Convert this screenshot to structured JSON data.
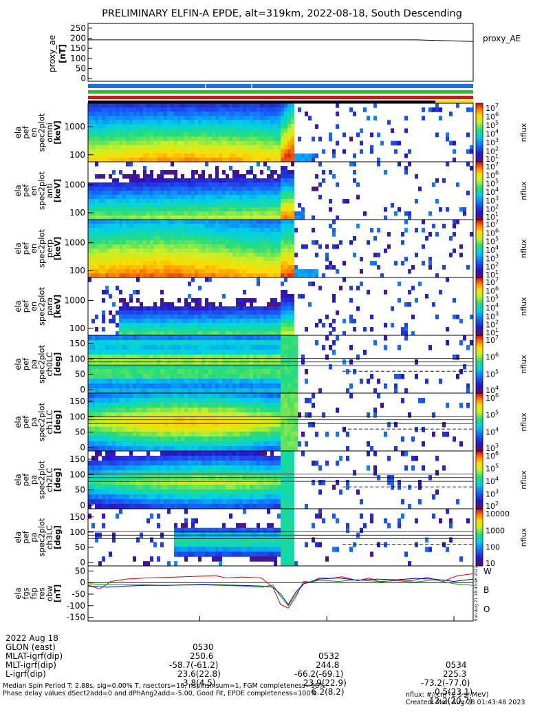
{
  "title": "PRELIMINARY ELFIN-A EPDE, alt=319km, 2022-08-18, South Descending",
  "colors": {
    "strip_blue": "#1e6fe0",
    "strip_green": "#22c422",
    "strip_red": "#e01010",
    "strip_black": "#000000",
    "strip_yellow": "#ffd700",
    "line_W": "#e00000",
    "line_B": "#00a000",
    "line_O": "#0000e0"
  },
  "panels": {
    "ae": {
      "ylabel_lines": [
        "proxy_ae",
        "[nT]"
      ],
      "ticks": [
        "250",
        "200",
        "150",
        "100",
        "50",
        "0"
      ],
      "legend": "proxy_AE"
    },
    "spec": [
      {
        "ylabel_lines": [
          "ela",
          "pef",
          "en",
          "spec2plot",
          "omni",
          "[keV]"
        ],
        "ticks": [
          "1000",
          "100"
        ]
      },
      {
        "ylabel_lines": [
          "ela",
          "pef",
          "en",
          "spec2plot",
          "anti",
          "[keV]"
        ],
        "ticks": [
          "1000",
          "100"
        ]
      },
      {
        "ylabel_lines": [
          "ela",
          "pef",
          "en",
          "spec2plot",
          "perp",
          "[keV]"
        ],
        "ticks": [
          "1000",
          "100"
        ]
      },
      {
        "ylabel_lines": [
          "ela",
          "pef",
          "en",
          "spec2plot",
          "para",
          "[keV]"
        ],
        "ticks": [
          "1000",
          "100"
        ]
      },
      {
        "ylabel_lines": [
          "ela",
          "pef",
          "pa",
          "spec2plot",
          "ch0LC",
          "[deg]"
        ],
        "ticks": [
          "150",
          "100",
          "50",
          "0"
        ]
      },
      {
        "ylabel_lines": [
          "ela",
          "pef",
          "pa",
          "spec2plot",
          "ch1LC",
          "[deg]"
        ],
        "ticks": [
          "150",
          "100",
          "50",
          "0"
        ]
      },
      {
        "ylabel_lines": [
          "ela",
          "pef",
          "pa",
          "spec2plot",
          "ch2LC",
          "[deg]"
        ],
        "ticks": [
          "150",
          "100",
          "50",
          "0"
        ]
      },
      {
        "ylabel_lines": [
          "ela",
          "pef",
          "pa",
          "spec2plot",
          "ch3LC",
          "[deg]"
        ],
        "ticks": [
          "150",
          "100",
          "50",
          "0"
        ]
      }
    ],
    "colorbars": [
      {
        "labels": [
          "10^7",
          "10^6",
          "10^5",
          "10^4",
          "10^3",
          "10^2",
          "10^1"
        ],
        "unit": "nflux"
      },
      {
        "labels": [
          "10^7",
          "10^6",
          "10^5",
          "10^4",
          "10^3",
          "10^2",
          "10^1"
        ],
        "unit": "nflux"
      },
      {
        "labels": [
          "10^7",
          "10^6",
          "10^5",
          "10^4",
          "10^3",
          "10^2",
          "10^1"
        ],
        "unit": "nflux"
      },
      {
        "labels": [
          "10^7",
          "10^6",
          "10^5",
          "10^4",
          "10^3",
          "10^2",
          "10^1"
        ],
        "unit": "nflux"
      },
      {
        "labels": [
          "10^7",
          "10^6",
          "10^5",
          "10^4"
        ],
        "unit": "nflux"
      },
      {
        "labels": [
          "10^6",
          "10^5",
          "10^4",
          "10^3"
        ],
        "unit": "nflux"
      },
      {
        "labels": [
          "10^6",
          "10^5",
          "10^4",
          "10^3",
          "10^2"
        ],
        "unit": "nflux"
      },
      {
        "labels": [
          "10000",
          "1000",
          "100",
          "10"
        ],
        "unit": "nflux"
      }
    ],
    "fgs": {
      "ylabel_lines": [
        "ela",
        "fgs",
        "fsp",
        "res",
        "obw",
        "[nT]"
      ],
      "ticks": [
        "50",
        "0",
        "-50",
        "-100",
        "-150"
      ],
      "legend": [
        "W",
        "B",
        "O"
      ],
      "side_label": "Sun Aug 21 18:43:46 2022"
    }
  },
  "chart_data": {
    "type": "line",
    "title": "PRELIMINARY ELFIN-A EPDE, alt=319km, 2022-08-18, South Descending",
    "x_ticks": [
      "0530",
      "0532",
      "0534"
    ],
    "series": [
      {
        "name": "proxy_AE",
        "panel": "proxy_ae [nT]",
        "ylim": [
          0,
          260
        ],
        "x": [
          0.0,
          0.85,
          1.0
        ],
        "values": [
          192,
          192,
          184
        ]
      },
      {
        "name": "W",
        "panel": "ela fgs fsp res obw [nT]",
        "ylim": [
          -160,
          60
        ],
        "x": [
          0.0,
          0.03,
          0.06,
          0.1,
          0.15,
          0.2,
          0.25,
          0.3,
          0.33,
          0.36,
          0.4,
          0.45,
          0.48,
          0.5,
          0.52,
          0.54,
          0.56,
          0.58,
          0.6,
          0.63,
          0.66,
          0.7,
          0.73,
          0.76,
          0.8,
          0.84,
          0.88,
          0.92,
          0.96,
          1.0
        ],
        "values": [
          -10,
          -28,
          5,
          15,
          20,
          22,
          25,
          28,
          30,
          20,
          24,
          20,
          -20,
          -95,
          -110,
          -60,
          5,
          2,
          20,
          18,
          25,
          8,
          20,
          2,
          12,
          8,
          22,
          5,
          30,
          38
        ]
      },
      {
        "name": "B",
        "panel": "ela fgs fsp res obw [nT]",
        "ylim": [
          -160,
          60
        ],
        "x": [
          0.0,
          0.05,
          0.1,
          0.15,
          0.2,
          0.3,
          0.4,
          0.45,
          0.48,
          0.5,
          0.52,
          0.54,
          0.56,
          0.6,
          0.65,
          0.7,
          0.75,
          0.8,
          0.85,
          0.9,
          0.95,
          1.0
        ],
        "values": [
          -5,
          -8,
          -10,
          -10,
          -12,
          -10,
          -15,
          -20,
          -10,
          -60,
          -100,
          -50,
          -5,
          10,
          5,
          12,
          5,
          8,
          2,
          12,
          -5,
          -12
        ]
      },
      {
        "name": "O",
        "panel": "ela fgs fsp res obw [nT]",
        "ylim": [
          -160,
          60
        ],
        "x": [
          0.0,
          0.05,
          0.1,
          0.15,
          0.2,
          0.3,
          0.4,
          0.45,
          0.48,
          0.5,
          0.52,
          0.54,
          0.56,
          0.6,
          0.65,
          0.7,
          0.75,
          0.8,
          0.85,
          0.9,
          0.95,
          1.0
        ],
        "values": [
          -15,
          -20,
          -15,
          -12,
          -12,
          -8,
          -12,
          -15,
          -20,
          -50,
          -95,
          -40,
          -5,
          15,
          20,
          10,
          15,
          12,
          18,
          15,
          5,
          15
        ]
      }
    ]
  },
  "bottom": {
    "rows": [
      {
        "label": "2022 Aug 18",
        "c1": "0530",
        "c2": "0532",
        "c3": "0534"
      },
      {
        "label": "GLON (east)",
        "c1": "250.6",
        "c2": "244.8",
        "c3": "225.3"
      },
      {
        "label": "MLAT-igrf(dip)",
        "c1": "-58.7(-61.2)",
        "c2": "-66.2(-69.1)",
        "c3": "-73.2(-77.0)"
      },
      {
        "label": "MLT-igrf(dip)",
        "c1": "23.6(22.8)",
        "c2": "23.9(22.9)",
        "c3": "0.5(23.1)"
      },
      {
        "label": "L-igrf(dip)",
        "c1": "3.8(4.5)",
        "c2": "6.2(8.2)",
        "c3": "12.2(20.7)"
      }
    ],
    "footer_left_1": "Median Spin Period T: 2.88s, sig=0.00% T, nsectors=16, nspinsinsum=1, FGM completeness=98%",
    "footer_left_2": "Phase delay values dSect2add=0 and dPhAng2add=-5.00, Good Fit, EPDE completeness=100%",
    "footer_right_1": "nflux: #/(cm^2 s sr MeV)",
    "footer_right_2": "Created: Mon Aug 28 01:43:48 2023"
  }
}
